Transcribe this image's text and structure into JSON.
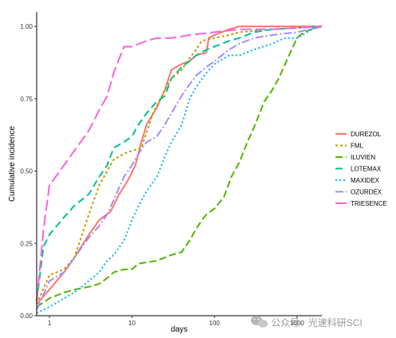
{
  "chart_data": {
    "type": "line",
    "title": "",
    "xlabel": "days",
    "ylabel": "Cumulative incidence",
    "x_scale": "log",
    "xlim": [
      0.7,
      2000
    ],
    "ylim": [
      0,
      1.05
    ],
    "x_ticks": [
      1,
      10,
      100,
      1000
    ],
    "x_tick_labels": [
      "1",
      "10",
      "100",
      "1000"
    ],
    "y_ticks": [
      0,
      0.25,
      0.5,
      0.75,
      1.0
    ],
    "y_tick_labels": [
      "0.00",
      "0.25",
      "0.50",
      "0.75",
      "1.00"
    ],
    "grid": false,
    "legend_position": "right",
    "series": [
      {
        "name": "DUREZOL",
        "color": "#F8766D",
        "dash": "solid",
        "points": [
          [
            0.7,
            0.04
          ],
          [
            1,
            0.09
          ],
          [
            1.5,
            0.15
          ],
          [
            2,
            0.2
          ],
          [
            3,
            0.28
          ],
          [
            4,
            0.33
          ],
          [
            5.5,
            0.36
          ],
          [
            7,
            0.42
          ],
          [
            9,
            0.47
          ],
          [
            11,
            0.52
          ],
          [
            13,
            0.6
          ],
          [
            15,
            0.66
          ],
          [
            20,
            0.72
          ],
          [
            25,
            0.78
          ],
          [
            30,
            0.85
          ],
          [
            40,
            0.87
          ],
          [
            50,
            0.88
          ],
          [
            60,
            0.9
          ],
          [
            80,
            0.91
          ],
          [
            85,
            0.96
          ],
          [
            100,
            0.97
          ],
          [
            150,
            0.99
          ],
          [
            200,
            1.0
          ],
          [
            500,
            1.0
          ],
          [
            2000,
            1.0
          ]
        ]
      },
      {
        "name": "FML",
        "color": "#C49A00",
        "dash": "3,3",
        "points": [
          [
            0.7,
            0.04
          ],
          [
            1,
            0.14
          ],
          [
            1.5,
            0.16
          ],
          [
            2,
            0.2
          ],
          [
            3,
            0.35
          ],
          [
            4,
            0.45
          ],
          [
            5,
            0.5
          ],
          [
            6,
            0.54
          ],
          [
            8,
            0.56
          ],
          [
            10,
            0.57
          ],
          [
            13,
            0.58
          ],
          [
            18,
            0.7
          ],
          [
            25,
            0.78
          ],
          [
            30,
            0.82
          ],
          [
            40,
            0.85
          ],
          [
            50,
            0.89
          ],
          [
            60,
            0.92
          ],
          [
            70,
            0.95
          ],
          [
            100,
            0.96
          ],
          [
            150,
            0.97
          ],
          [
            200,
            0.98
          ],
          [
            500,
            0.99
          ],
          [
            2000,
            1.0
          ]
        ]
      },
      {
        "name": "ILUVIEN",
        "color": "#53B400",
        "dash": "9,4",
        "points": [
          [
            0.7,
            0.03
          ],
          [
            1,
            0.06
          ],
          [
            1.5,
            0.08
          ],
          [
            2,
            0.09
          ],
          [
            3,
            0.1
          ],
          [
            4,
            0.11
          ],
          [
            5,
            0.13
          ],
          [
            6,
            0.15
          ],
          [
            8,
            0.16
          ],
          [
            10,
            0.16
          ],
          [
            12,
            0.18
          ],
          [
            20,
            0.19
          ],
          [
            30,
            0.21
          ],
          [
            40,
            0.22
          ],
          [
            50,
            0.26
          ],
          [
            60,
            0.3
          ],
          [
            70,
            0.33
          ],
          [
            80,
            0.35
          ],
          [
            100,
            0.37
          ],
          [
            130,
            0.41
          ],
          [
            160,
            0.48
          ],
          [
            200,
            0.53
          ],
          [
            250,
            0.6
          ],
          [
            300,
            0.65
          ],
          [
            400,
            0.74
          ],
          [
            500,
            0.78
          ],
          [
            600,
            0.82
          ],
          [
            800,
            0.9
          ],
          [
            1000,
            0.96
          ],
          [
            1200,
            0.98
          ],
          [
            1500,
            0.99
          ],
          [
            2000,
            1.0
          ]
        ]
      },
      {
        "name": "LOTEMAX",
        "color": "#00C094",
        "dash": "9,5",
        "points": [
          [
            0.7,
            0.05
          ],
          [
            0.85,
            0.24
          ],
          [
            1,
            0.28
          ],
          [
            1.5,
            0.34
          ],
          [
            2,
            0.38
          ],
          [
            3,
            0.42
          ],
          [
            4,
            0.48
          ],
          [
            5,
            0.52
          ],
          [
            6,
            0.58
          ],
          [
            8,
            0.6
          ],
          [
            10,
            0.62
          ],
          [
            12,
            0.66
          ],
          [
            15,
            0.7
          ],
          [
            20,
            0.74
          ],
          [
            25,
            0.76
          ],
          [
            30,
            0.82
          ],
          [
            40,
            0.86
          ],
          [
            50,
            0.88
          ],
          [
            60,
            0.9
          ],
          [
            80,
            0.92
          ],
          [
            100,
            0.93
          ],
          [
            150,
            0.95
          ],
          [
            200,
            0.96
          ],
          [
            300,
            0.98
          ],
          [
            500,
            0.99
          ],
          [
            2000,
            1.0
          ]
        ]
      },
      {
        "name": "MAXIDEX",
        "color": "#00B6EB",
        "dash": "2,3",
        "points": [
          [
            0.7,
            0.01
          ],
          [
            1,
            0.03
          ],
          [
            1.5,
            0.06
          ],
          [
            2,
            0.08
          ],
          [
            3,
            0.12
          ],
          [
            4,
            0.15
          ],
          [
            5,
            0.19
          ],
          [
            6,
            0.21
          ],
          [
            8,
            0.26
          ],
          [
            10,
            0.33
          ],
          [
            12,
            0.38
          ],
          [
            15,
            0.43
          ],
          [
            20,
            0.48
          ],
          [
            25,
            0.55
          ],
          [
            30,
            0.6
          ],
          [
            40,
            0.66
          ],
          [
            50,
            0.75
          ],
          [
            60,
            0.79
          ],
          [
            80,
            0.84
          ],
          [
            100,
            0.87
          ],
          [
            150,
            0.9
          ],
          [
            200,
            0.9
          ],
          [
            300,
            0.92
          ],
          [
            500,
            0.94
          ],
          [
            700,
            0.96
          ],
          [
            1000,
            0.96
          ],
          [
            1500,
            0.99
          ],
          [
            2000,
            1.0
          ]
        ]
      },
      {
        "name": "OZURDEX",
        "color": "#A58AFF",
        "dash": "10,3,2,3",
        "points": [
          [
            0.7,
            0.02
          ],
          [
            1,
            0.12
          ],
          [
            1.5,
            0.15
          ],
          [
            2,
            0.2
          ],
          [
            3,
            0.27
          ],
          [
            4,
            0.31
          ],
          [
            5,
            0.35
          ],
          [
            6,
            0.4
          ],
          [
            8,
            0.48
          ],
          [
            10,
            0.52
          ],
          [
            12,
            0.56
          ],
          [
            15,
            0.6
          ],
          [
            20,
            0.62
          ],
          [
            25,
            0.66
          ],
          [
            30,
            0.7
          ],
          [
            40,
            0.76
          ],
          [
            50,
            0.8
          ],
          [
            60,
            0.83
          ],
          [
            80,
            0.86
          ],
          [
            100,
            0.88
          ],
          [
            150,
            0.92
          ],
          [
            200,
            0.94
          ],
          [
            300,
            0.96
          ],
          [
            500,
            0.97
          ],
          [
            1000,
            0.98
          ],
          [
            2000,
            1.0
          ]
        ]
      },
      {
        "name": "TRIESENCE",
        "color": "#FB61D7",
        "dash": "14,5",
        "points": [
          [
            0.7,
            0.05
          ],
          [
            0.85,
            0.3
          ],
          [
            1,
            0.45
          ],
          [
            1.5,
            0.52
          ],
          [
            2,
            0.57
          ],
          [
            3,
            0.64
          ],
          [
            4,
            0.71
          ],
          [
            5,
            0.76
          ],
          [
            6,
            0.84
          ],
          [
            8,
            0.93
          ],
          [
            10,
            0.93
          ],
          [
            15,
            0.95
          ],
          [
            20,
            0.96
          ],
          [
            30,
            0.96
          ],
          [
            50,
            0.97
          ],
          [
            100,
            0.98
          ],
          [
            200,
            0.99
          ],
          [
            500,
            0.99
          ],
          [
            2000,
            1.0
          ]
        ]
      }
    ]
  },
  "watermark": {
    "text": "公众号 · 光速科研SCI",
    "icon": "wechat-icon"
  }
}
